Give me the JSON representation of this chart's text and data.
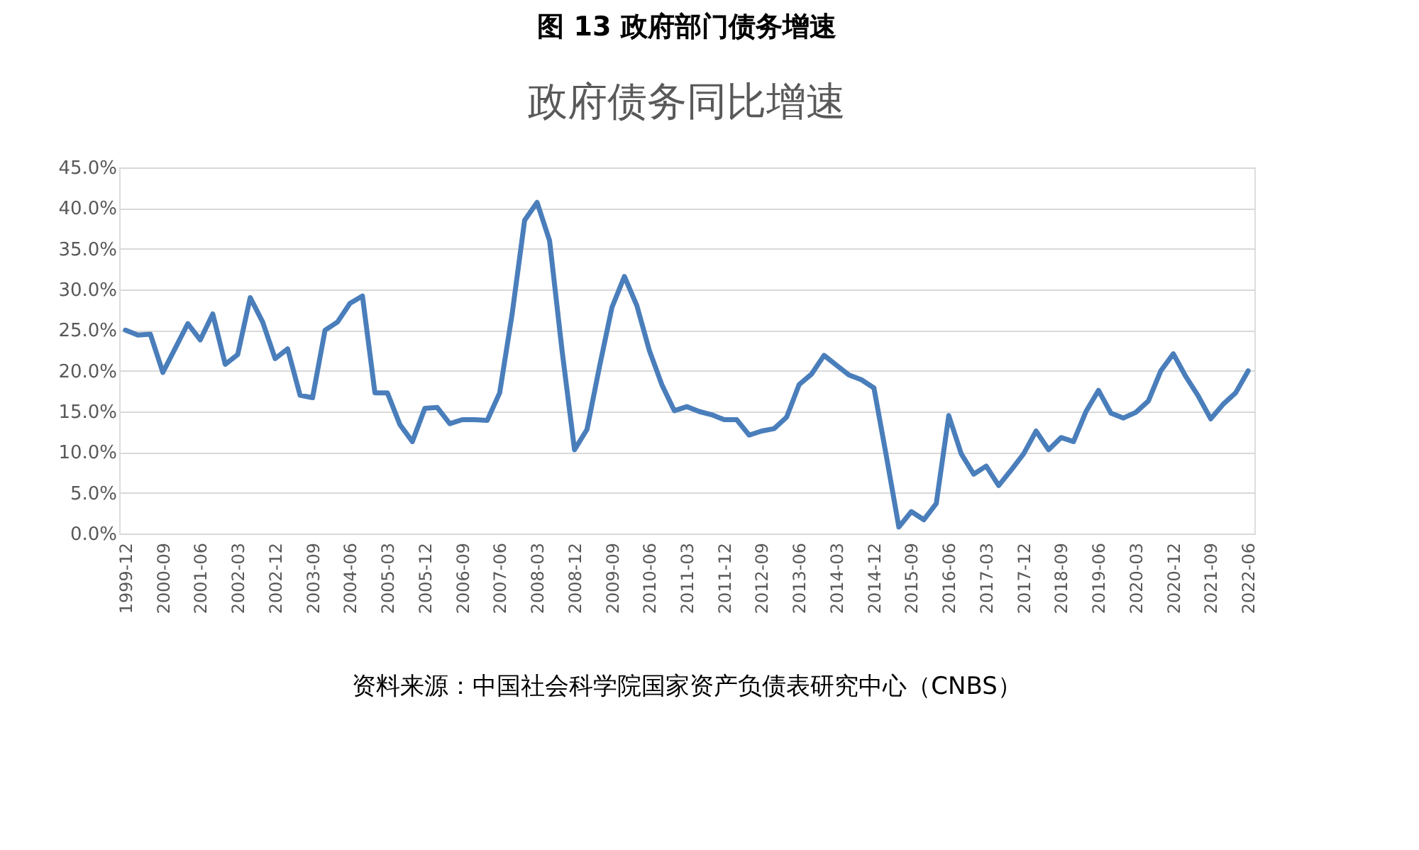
{
  "chart_data": {
    "type": "line",
    "title": "图 13 政府部门债务增速",
    "subtitle": "政府债务同比增速",
    "categories": [
      "1999-12",
      null,
      null,
      "2000-09",
      null,
      null,
      "2001-06",
      null,
      null,
      "2002-03",
      null,
      null,
      "2002-12",
      null,
      null,
      "2003-09",
      null,
      null,
      "2004-06",
      null,
      null,
      "2005-03",
      null,
      null,
      "2005-12",
      null,
      null,
      "2006-09",
      null,
      null,
      "2007-06",
      null,
      null,
      "2008-03",
      null,
      null,
      "2008-12",
      null,
      null,
      "2009-09",
      null,
      null,
      "2010-06",
      null,
      null,
      "2011-03",
      null,
      null,
      "2011-12",
      null,
      null,
      "2012-09",
      null,
      null,
      "2013-06",
      null,
      null,
      "2014-03",
      null,
      null,
      "2014-12",
      null,
      null,
      "2015-09",
      null,
      null,
      "2016-06",
      null,
      null,
      "2017-03",
      null,
      null,
      "2017-12",
      null,
      null,
      "2018-09",
      null,
      null,
      "2019-06",
      null,
      null,
      "2020-03",
      null,
      null,
      "2020-12",
      null,
      null,
      "2021-09",
      null,
      null,
      "2022-06"
    ],
    "series": [
      {
        "color": "#4a7ebb",
        "values": [
          25.0,
          24.4,
          24.5,
          19.8,
          22.8,
          25.8,
          23.8,
          27.0,
          20.8,
          22.0,
          29.0,
          26.0,
          21.5,
          22.7,
          17.0,
          16.7,
          25.0,
          26.0,
          28.3,
          29.2,
          17.3,
          17.3,
          13.4,
          11.3,
          15.4,
          15.5,
          13.5,
          14.0,
          14.0,
          13.9,
          17.3,
          27.0,
          38.5,
          40.7,
          36.0,
          22.5,
          10.3,
          12.8,
          20.5,
          27.8,
          31.6,
          28.0,
          22.5,
          18.3,
          15.1,
          15.6,
          15.0,
          14.6,
          14.0,
          14.0,
          12.1,
          12.6,
          12.9,
          14.3,
          18.3,
          19.6,
          21.9,
          20.7,
          19.5,
          18.9,
          17.9,
          9.5,
          0.8,
          2.7,
          1.7,
          3.7,
          14.5,
          9.8,
          7.3,
          8.3,
          5.9,
          7.8,
          9.8,
          12.6,
          10.3,
          11.8,
          11.3,
          15.0,
          17.6,
          14.8,
          14.2,
          14.9,
          16.3,
          20.0,
          22.1,
          19.3,
          16.9,
          14.1,
          15.9,
          17.3,
          20.0
        ]
      }
    ],
    "ylim": [
      0,
      45
    ],
    "yticks": [
      {
        "value": 0,
        "label": "0.0%"
      },
      {
        "value": 5,
        "label": "5.0%"
      },
      {
        "value": 10,
        "label": "10.0%"
      },
      {
        "value": 15,
        "label": "15.0%"
      },
      {
        "value": 20,
        "label": "20.0%"
      },
      {
        "value": 25,
        "label": "25.0%"
      },
      {
        "value": 30,
        "label": "30.0%"
      },
      {
        "value": 35,
        "label": "35.0%"
      },
      {
        "value": 40,
        "label": "40.0%"
      },
      {
        "value": 45,
        "label": "45.0%"
      }
    ],
    "grid": "y",
    "marker": "none",
    "line_style": "solid",
    "annotations": [
      "资料来源：中国社会科学院国家资产负债表研究中心（CNBS）"
    ]
  }
}
